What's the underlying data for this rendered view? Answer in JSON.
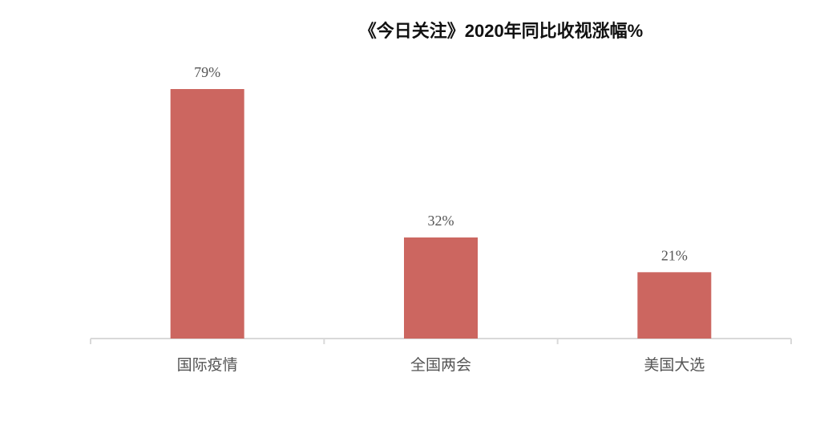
{
  "chart_data": {
    "type": "bar",
    "title": "《今日关注》2020年同比收视涨幅%",
    "categories": [
      "国际疫情",
      "全国两会",
      "美国大选"
    ],
    "values": [
      79,
      32,
      21
    ],
    "value_labels": [
      "79%",
      "32%",
      "21%"
    ],
    "color": "#cc6660"
  }
}
